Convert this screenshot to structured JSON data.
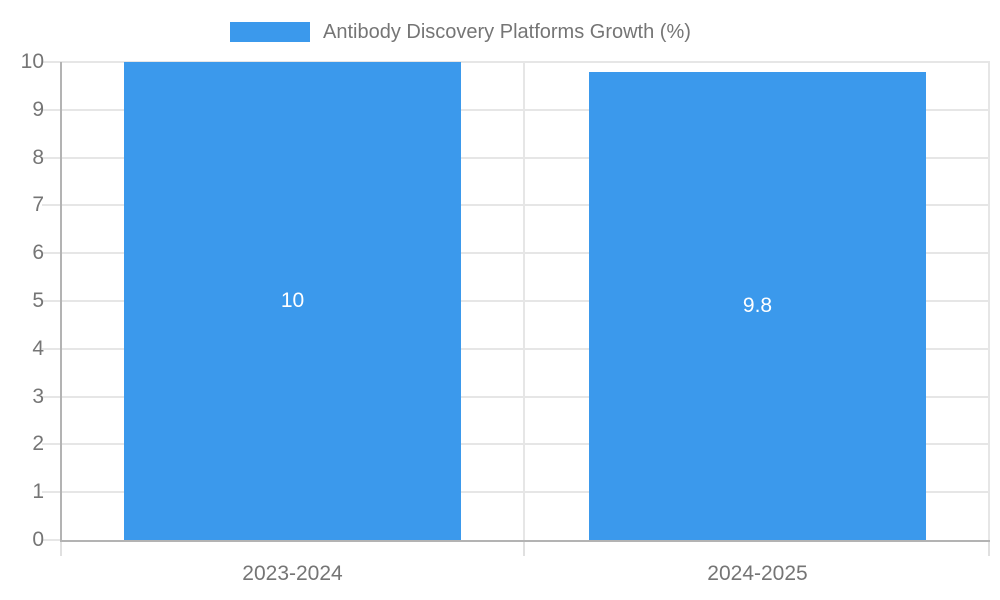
{
  "chart_data": {
    "type": "bar",
    "categories": [
      "2023-2024",
      "2024-2025"
    ],
    "values": [
      10,
      9.8
    ],
    "value_labels": [
      "10",
      "9.8"
    ],
    "title": "Antibody Discovery Platforms Growth (%)",
    "xlabel": "",
    "ylabel": "",
    "ylim": [
      0,
      10
    ],
    "y_ticks": [
      0,
      1,
      2,
      3,
      4,
      5,
      6,
      7,
      8,
      9,
      10
    ],
    "grid": true,
    "legend_position": "top-center",
    "legend_entries": [
      "Antibody Discovery Platforms Growth (%)"
    ]
  },
  "legend": {
    "label": "Antibody Discovery Platforms Growth (%)"
  },
  "colors": {
    "bar": "#3b99ec",
    "bar_value_text": "#ffffff",
    "axis_text": "#757575",
    "gridline": "#e6e6e6",
    "axis_border": "#b3b3b3",
    "background": "#ffffff"
  }
}
